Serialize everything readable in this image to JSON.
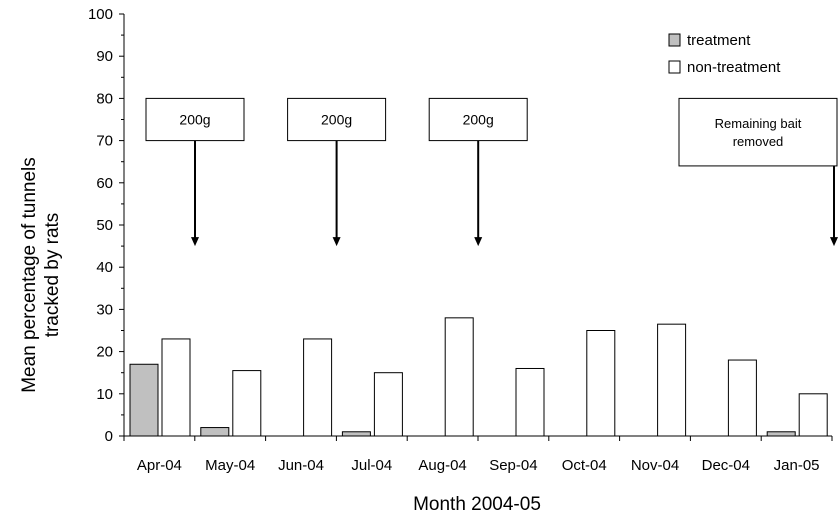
{
  "chart_data": {
    "type": "bar",
    "xlabel": "Month 2004-05",
    "ylabel_lines": [
      "Mean percentage of tunnels",
      "tracked by rats"
    ],
    "ylim": [
      0,
      100
    ],
    "yticks": [
      0,
      10,
      20,
      30,
      40,
      50,
      60,
      70,
      80,
      90,
      100
    ],
    "grid": false,
    "legend_position": "top-right",
    "categories": [
      "Apr-04",
      "May-04",
      "Jun-04",
      "Jul-04",
      "Aug-04",
      "Sep-04",
      "Oct-04",
      "Nov-04",
      "Dec-04",
      "Jan-05"
    ],
    "series": [
      {
        "name": "treatment",
        "color": "#c0c0c0",
        "values": [
          17,
          2,
          0,
          1,
          0,
          0,
          0,
          0,
          0,
          1
        ]
      },
      {
        "name": "non-treatment",
        "color": "#ffffff",
        "values": [
          23,
          15.5,
          23,
          15,
          28,
          16,
          25,
          26.5,
          18,
          10
        ]
      }
    ],
    "annotations": [
      {
        "label_lines": [
          "200g"
        ],
        "category": "Apr-04",
        "box_y_range": [
          70,
          80
        ],
        "arrow_to_y": 45
      },
      {
        "label_lines": [
          "200g"
        ],
        "category": "Jun-04",
        "box_y_range": [
          70,
          80
        ],
        "arrow_to_y": 45
      },
      {
        "label_lines": [
          "200g"
        ],
        "category": "Aug-04",
        "box_y_range": [
          70,
          80
        ],
        "arrow_to_y": 45
      },
      {
        "label_lines": [
          "Remaining",
          "bait",
          "removed"
        ],
        "label_text_lines": [
          "Remaining bait",
          "removed"
        ],
        "category": "Jan-05",
        "box_y_range": [
          64,
          80
        ],
        "arrow_to_y": 45
      }
    ]
  }
}
